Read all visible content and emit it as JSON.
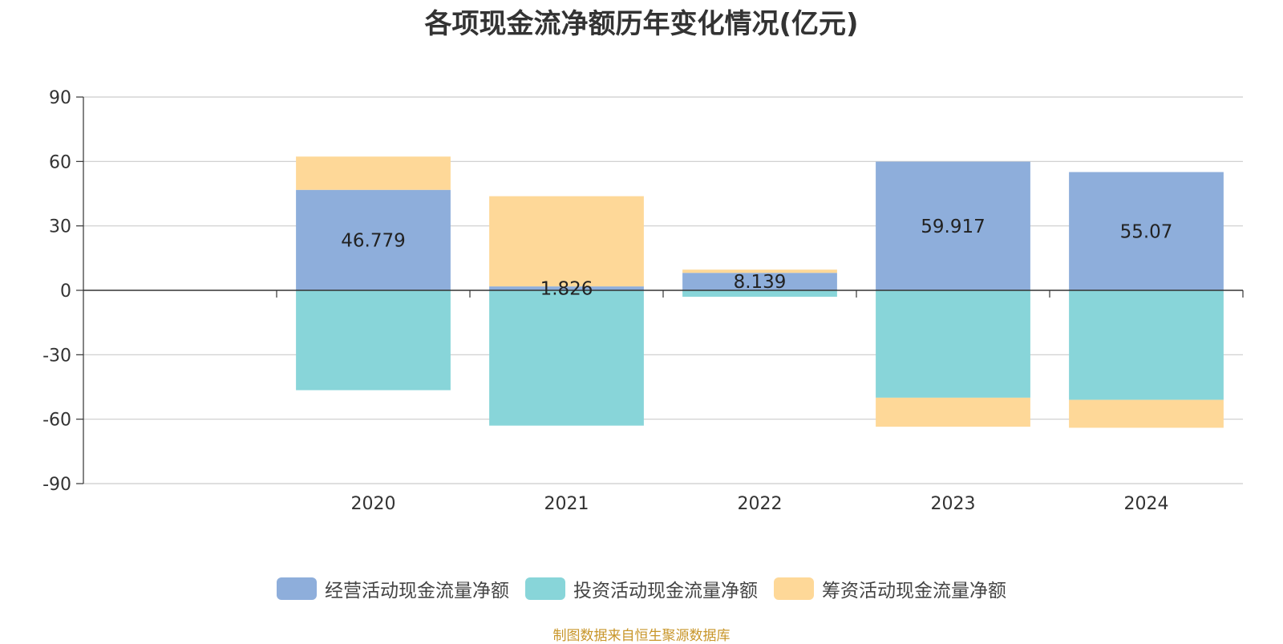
{
  "chart_data": {
    "type": "bar",
    "stacked": true,
    "title": "各项现金流净额历年变化情况(亿元)",
    "categories": [
      "2020",
      "2021",
      "2022",
      "2023",
      "2024"
    ],
    "x_slots": 6,
    "ylim": [
      -90,
      90
    ],
    "yticks": [
      90,
      60,
      30,
      0,
      -30,
      -60,
      -90
    ],
    "grid": true,
    "legend_position": "bottom",
    "series": [
      {
        "name": "经营活动现金流量净额",
        "color": "#8eaedb",
        "values": [
          46.779,
          1.826,
          8.139,
          59.917,
          55.07
        ],
        "labels": [
          "46.779",
          "1.826",
          "8.139",
          "59.917",
          "55.07"
        ]
      },
      {
        "name": "投资活动现金流量净额",
        "color": "#88d5d9",
        "values": [
          -46.5,
          -63.0,
          -3.0,
          -50.0,
          -51.0
        ]
      },
      {
        "name": "筹资活动现金流量净额",
        "color": "#fed898",
        "values": [
          15.5,
          42.0,
          1.5,
          -13.5,
          -13.0
        ]
      }
    ]
  },
  "source": "制图数据来自恒生聚源数据库"
}
